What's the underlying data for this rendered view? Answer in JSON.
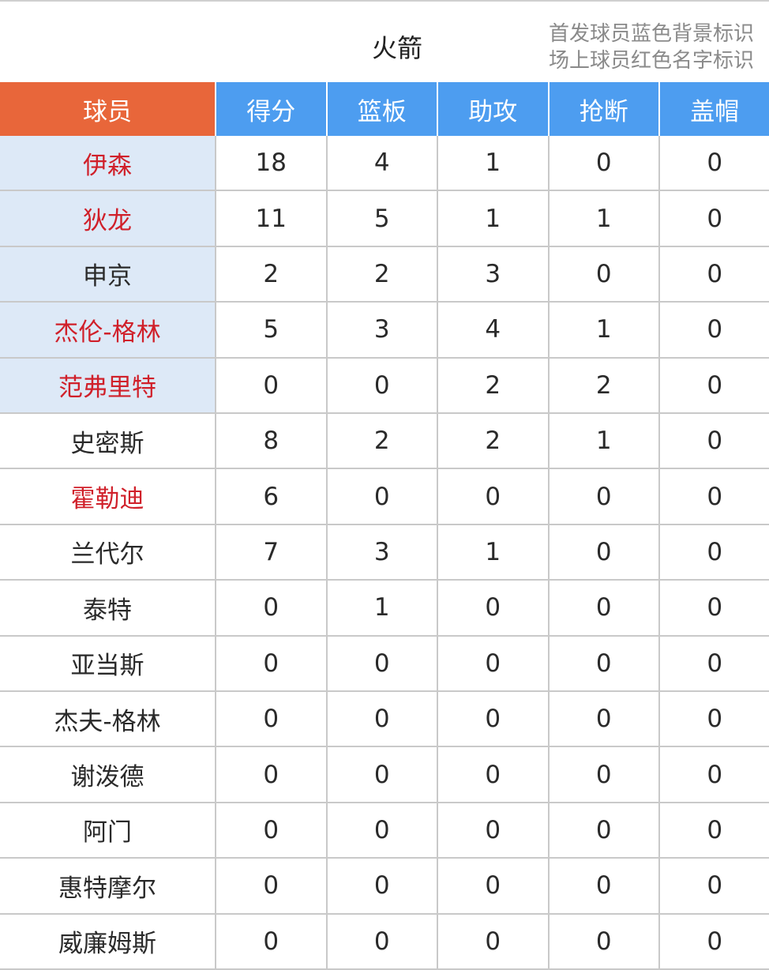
{
  "header": {
    "title": "火箭",
    "notes": [
      "首发球员蓝色背景标识",
      "场上球员红色名字标识"
    ]
  },
  "table": {
    "columns": [
      "球员",
      "得分",
      "篮板",
      "助攻",
      "抢断",
      "盖帽"
    ],
    "rows": [
      {
        "name": "伊森",
        "stats": [
          18,
          4,
          1,
          0,
          0
        ],
        "starter": true,
        "on_court": true
      },
      {
        "name": "狄龙",
        "stats": [
          11,
          5,
          1,
          1,
          0
        ],
        "starter": true,
        "on_court": true
      },
      {
        "name": "申京",
        "stats": [
          2,
          2,
          3,
          0,
          0
        ],
        "starter": true,
        "on_court": false
      },
      {
        "name": "杰伦-格林",
        "stats": [
          5,
          3,
          4,
          1,
          0
        ],
        "starter": true,
        "on_court": true
      },
      {
        "name": "范弗里特",
        "stats": [
          0,
          0,
          2,
          2,
          0
        ],
        "starter": true,
        "on_court": true
      },
      {
        "name": "史密斯",
        "stats": [
          8,
          2,
          2,
          1,
          0
        ],
        "starter": false,
        "on_court": false
      },
      {
        "name": "霍勒迪",
        "stats": [
          6,
          0,
          0,
          0,
          0
        ],
        "starter": false,
        "on_court": true
      },
      {
        "name": "兰代尔",
        "stats": [
          7,
          3,
          1,
          0,
          0
        ],
        "starter": false,
        "on_court": false
      },
      {
        "name": "泰特",
        "stats": [
          0,
          1,
          0,
          0,
          0
        ],
        "starter": false,
        "on_court": false
      },
      {
        "name": "亚当斯",
        "stats": [
          0,
          0,
          0,
          0,
          0
        ],
        "starter": false,
        "on_court": false
      },
      {
        "name": "杰夫-格林",
        "stats": [
          0,
          0,
          0,
          0,
          0
        ],
        "starter": false,
        "on_court": false
      },
      {
        "name": "谢泼德",
        "stats": [
          0,
          0,
          0,
          0,
          0
        ],
        "starter": false,
        "on_court": false
      },
      {
        "name": "阿门",
        "stats": [
          0,
          0,
          0,
          0,
          0
        ],
        "starter": false,
        "on_court": false
      },
      {
        "name": "惠特摩尔",
        "stats": [
          0,
          0,
          0,
          0,
          0
        ],
        "starter": false,
        "on_court": false
      },
      {
        "name": "威廉姆斯",
        "stats": [
          0,
          0,
          0,
          0,
          0
        ],
        "starter": false,
        "on_court": false
      }
    ]
  }
}
